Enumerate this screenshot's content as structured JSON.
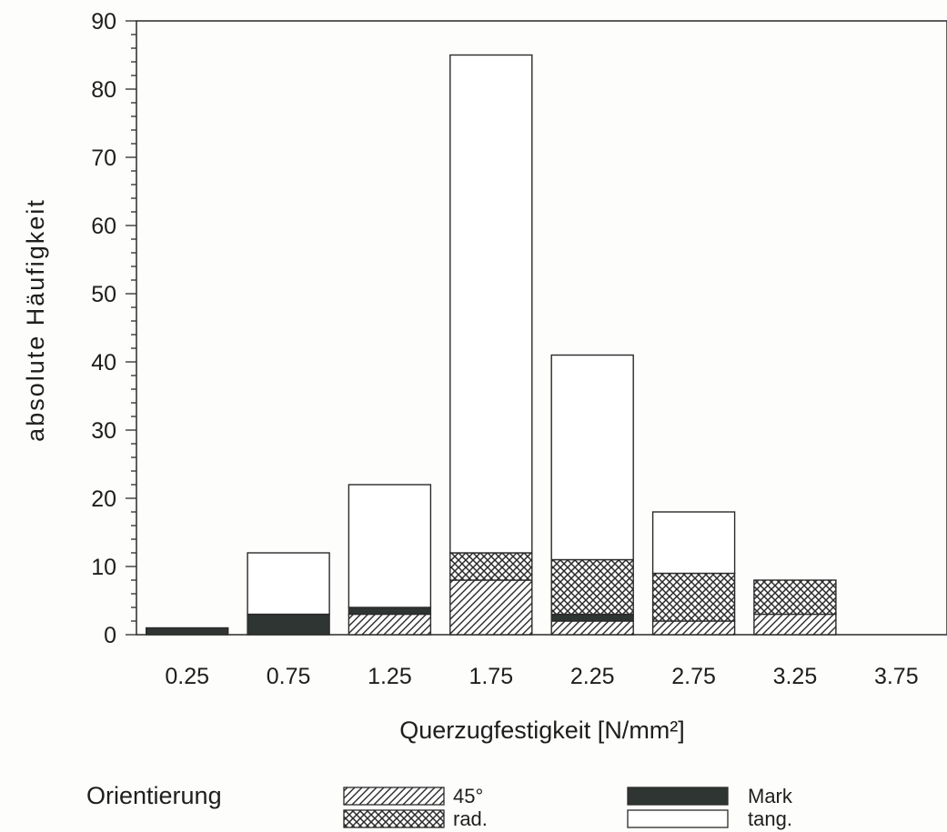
{
  "chart_data": {
    "type": "bar",
    "stacked": true,
    "xlabel": "Querzugfestigkeit [N/mm²]",
    "ylabel": "absolute Häufigkeit",
    "ylim": [
      0,
      90
    ],
    "yticks": [
      0,
      10,
      20,
      30,
      40,
      50,
      60,
      70,
      80,
      90
    ],
    "categories": [
      "0.25",
      "0.75",
      "1.25",
      "1.75",
      "2.25",
      "2.75",
      "3.25",
      "3.75"
    ],
    "series": [
      {
        "name": "45°",
        "values": [
          0,
          0,
          3,
          8,
          2,
          2,
          3,
          0
        ]
      },
      {
        "name": "Mark",
        "values": [
          1,
          3,
          1,
          0,
          1,
          0,
          0,
          0
        ]
      },
      {
        "name": "rad.",
        "values": [
          0,
          0,
          0,
          4,
          8,
          7,
          5,
          0
        ]
      },
      {
        "name": "tang.",
        "values": [
          0,
          9,
          18,
          73,
          30,
          9,
          0,
          0
        ]
      }
    ],
    "legend": {
      "title": "Orientierung",
      "placement": "bottom",
      "entries": [
        "45°",
        "rad.",
        "Mark",
        "tang."
      ]
    },
    "grid": false
  },
  "series_style": {
    "45°": {
      "fill": "hatch",
      "color": "#2a2a2a"
    },
    "Mark": {
      "fill": "solid",
      "color": "#2f3532"
    },
    "rad.": {
      "fill": "crosshatch",
      "color": "#2a2a2a"
    },
    "tang.": {
      "fill": "solid",
      "color": "#ffffff"
    }
  }
}
